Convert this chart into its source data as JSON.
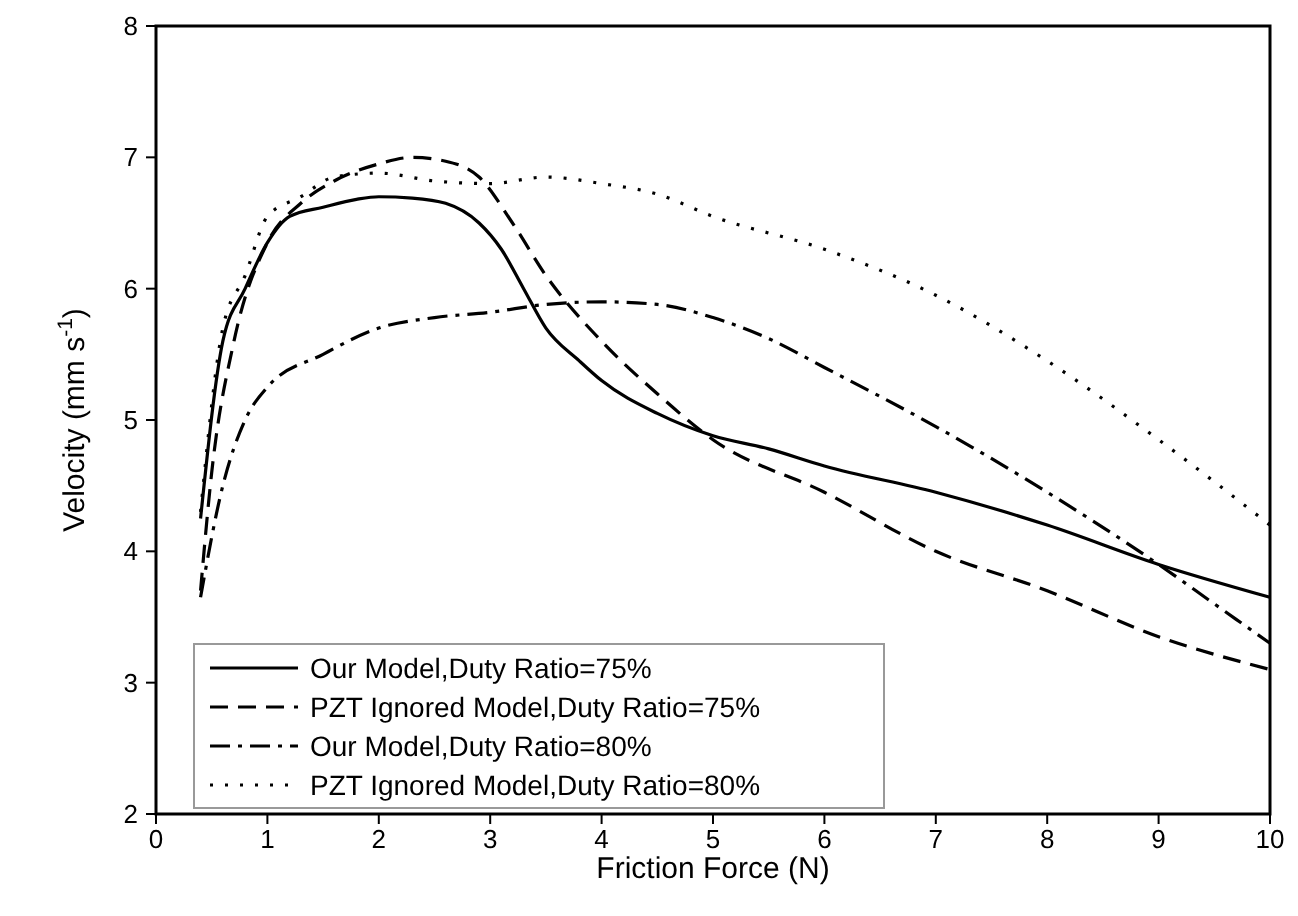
{
  "chart_data": {
    "type": "line",
    "xlabel": "Friction Force (N)",
    "ylabel": "Velocity (mm s$^{-1}$)",
    "xlim": [
      0,
      10
    ],
    "xticks": [
      0,
      1,
      2,
      3,
      4,
      5,
      6,
      7,
      8,
      9,
      10
    ],
    "ylim": [
      2,
      8
    ],
    "yticks": [
      2,
      3,
      4,
      5,
      6,
      7,
      8
    ],
    "grid": false,
    "legend": "bottom left",
    "series": [
      {
        "name": "Our Model,Duty Ratio=75%",
        "color": "#000000",
        "line_style": "solid",
        "x": [
          0.4,
          0.6,
          0.8,
          1.0,
          1.2,
          1.5,
          1.8,
          2.0,
          2.3,
          2.6,
          2.9,
          3.1,
          3.3,
          3.5,
          3.8,
          4.0,
          4.5,
          5.0,
          5.5,
          6,
          7,
          8,
          9,
          10
        ],
        "values": [
          4.25,
          5.6,
          6.0,
          6.35,
          6.55,
          6.62,
          6.68,
          6.7,
          6.69,
          6.65,
          6.5,
          6.3,
          6.0,
          5.7,
          5.45,
          5.3,
          5.05,
          4.88,
          4.78,
          4.65,
          4.45,
          4.2,
          3.9,
          3.65
        ]
      },
      {
        "name": "PZT Ignored Model,Duty Ratio=75%",
        "color": "#000000",
        "line_style": "dashed",
        "x": [
          0.4,
          0.5,
          0.7,
          1.0,
          1.3,
          1.6,
          2.0,
          2.3,
          2.6,
          2.9,
          3.2,
          3.5,
          4,
          4.5,
          5,
          6,
          7,
          8,
          9,
          10
        ],
        "values": [
          3.7,
          4.6,
          5.6,
          6.35,
          6.65,
          6.82,
          6.95,
          7.0,
          6.97,
          6.85,
          6.5,
          6.1,
          5.6,
          5.2,
          4.85,
          4.45,
          4.0,
          3.7,
          3.35,
          3.1
        ]
      },
      {
        "name": "Our Model,Duty Ratio=80%",
        "color": "#000000",
        "line_style": "dashdot",
        "x": [
          0.4,
          0.6,
          0.8,
          1.0,
          1.5,
          2,
          2.5,
          3,
          3.5,
          4,
          4.5,
          5,
          5.5,
          6,
          7,
          8,
          9,
          9.5,
          10
        ],
        "values": [
          3.65,
          4.5,
          5.0,
          5.25,
          5.5,
          5.7,
          5.78,
          5.82,
          5.88,
          5.9,
          5.88,
          5.78,
          5.62,
          5.4,
          4.95,
          4.45,
          3.9,
          3.6,
          3.3
        ]
      },
      {
        "name": "PZT Ignored Model,Duty Ratio=80%",
        "color": "#000000",
        "line_style": "dotted",
        "x": [
          0.4,
          0.6,
          0.8,
          1.0,
          1.3,
          1.6,
          2,
          2.5,
          3,
          3.5,
          4,
          4.5,
          5,
          6,
          7,
          8,
          9,
          10
        ],
        "values": [
          4.3,
          5.7,
          6.1,
          6.55,
          6.7,
          6.85,
          6.88,
          6.82,
          6.8,
          6.85,
          6.8,
          6.72,
          6.55,
          6.3,
          5.95,
          5.45,
          4.85,
          4.2
        ]
      }
    ]
  }
}
